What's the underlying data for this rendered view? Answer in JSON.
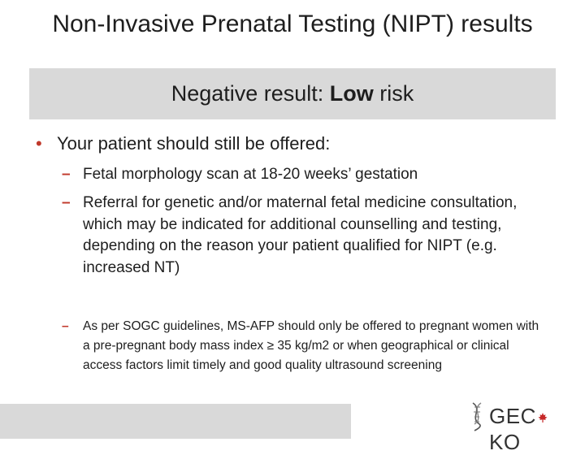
{
  "slide": {
    "title": "Non-Invasive Prenatal Testing (NIPT) results",
    "banner": {
      "prefix": "Negative result: ",
      "emphasis": "Low",
      "suffix": " risk"
    },
    "bullet": {
      "symbol": "•",
      "text": "Your patient should still be offered:"
    },
    "sub_items": [
      {
        "dash": "–",
        "text": "Fetal morphology scan at 18-20 weeks’ gestation"
      },
      {
        "dash": "–",
        "text": "Referral for genetic and/or maternal fetal medicine consultation, which may be indicated for additional counselling and testing, depending on the reason your patient qualified for NIPT (e.g. increased NT)"
      },
      {
        "dash": "–",
        "text": "As per SOGC guidelines, MS-AFP should only be offered to pregnant women with a pre-pregnant body mass index ≥ 35 kg/m2 or when geographical or clinical access factors limit timely and good quality ultrasound screening"
      }
    ],
    "logo": {
      "left": "GEC",
      "right": "KO",
      "leaf_color": "#c62828"
    },
    "colors": {
      "accent": "#c0392b",
      "banner_bg": "#d9d9d9"
    }
  }
}
